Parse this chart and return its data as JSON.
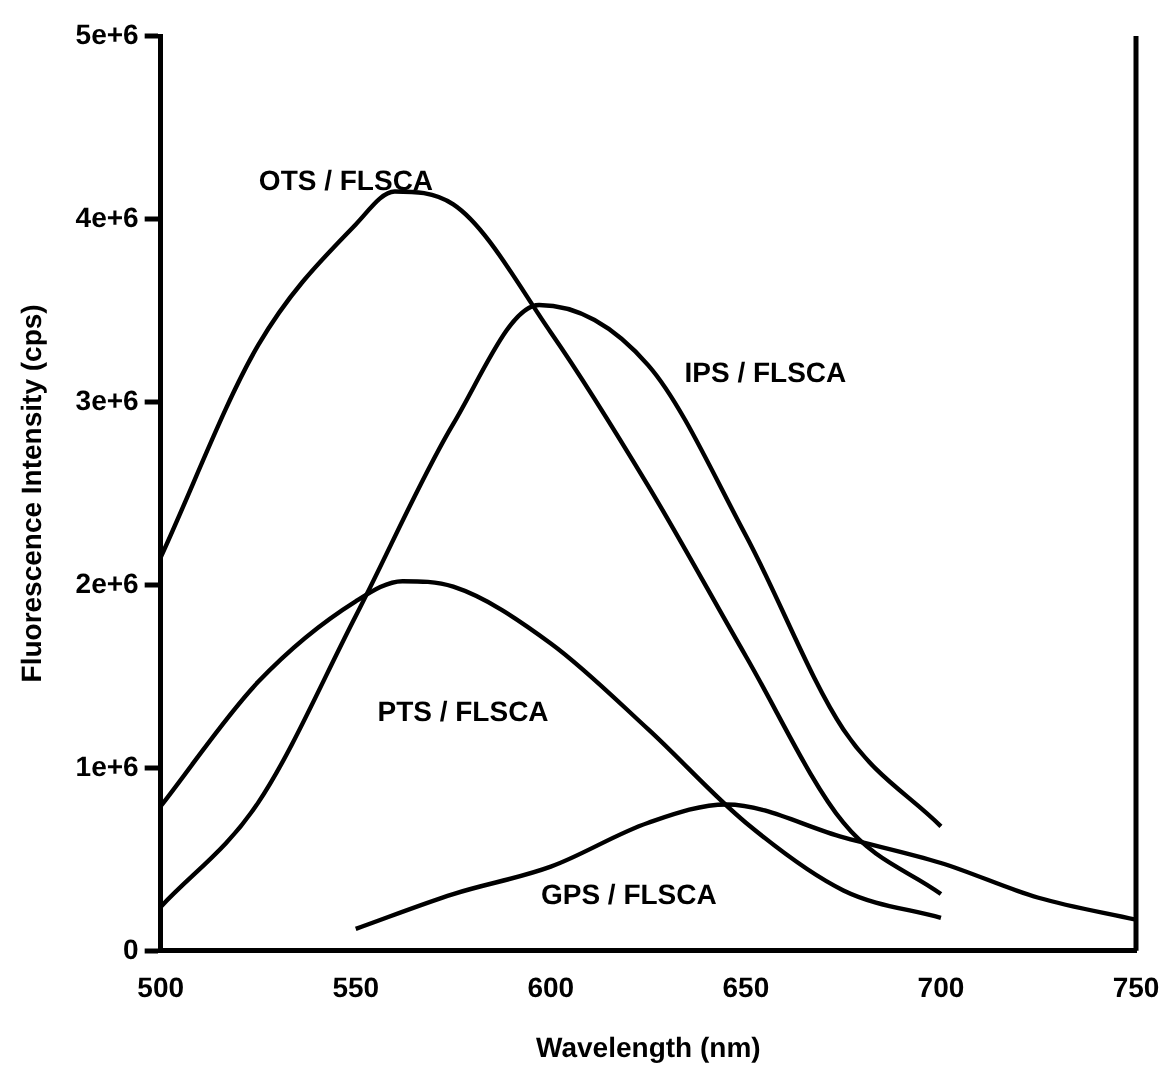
{
  "chart_data": {
    "type": "line",
    "xlabel": "Wavelength (nm)",
    "ylabel": "Fluorescence Intensity (cps)",
    "xlim": [
      500,
      750
    ],
    "xticks": [
      500,
      550,
      600,
      650,
      700,
      750
    ],
    "ylim": [
      0,
      5000000
    ],
    "yticks": [
      {
        "value": 0,
        "label": "0"
      },
      {
        "value": 1000000,
        "label": "1e+6"
      },
      {
        "value": 2000000,
        "label": "2e+6"
      },
      {
        "value": 3000000,
        "label": "3e+6"
      },
      {
        "value": 4000000,
        "label": "4e+6"
      },
      {
        "value": 5000000,
        "label": "5e+6"
      }
    ],
    "grid": false,
    "legend": false,
    "marker": "none",
    "line_style": "solid",
    "series": [
      {
        "name": "OTS / FLSCA",
        "color": "#000000",
        "x": [
          500,
          525,
          550,
          560,
          575,
          600,
          625,
          650,
          675,
          700
        ],
        "values": [
          2150000,
          3310000,
          3970000,
          4150000,
          4080000,
          3380000,
          2540000,
          1610000,
          700000,
          310000
        ]
      },
      {
        "name": "IPS / FLSCA",
        "color": "#000000",
        "x": [
          500,
          525,
          550,
          575,
          597,
          625,
          650,
          675,
          700
        ],
        "values": [
          240000,
          810000,
          1830000,
          2880000,
          3530000,
          3200000,
          2270000,
          1210000,
          680000
        ]
      },
      {
        "name": "PTS / FLSCA",
        "color": "#000000",
        "x": [
          500,
          525,
          550,
          562,
          575,
          600,
          625,
          650,
          675,
          700
        ],
        "values": [
          790000,
          1470000,
          1910000,
          2020000,
          1990000,
          1680000,
          1210000,
          700000,
          330000,
          180000
        ]
      },
      {
        "name": "GPS / FLSCA",
        "color": "#000000",
        "x": [
          550,
          575,
          600,
          625,
          645,
          675,
          700,
          725,
          750
        ],
        "values": [
          120000,
          310000,
          460000,
          700000,
          800000,
          620000,
          480000,
          290000,
          170000
        ]
      }
    ]
  }
}
